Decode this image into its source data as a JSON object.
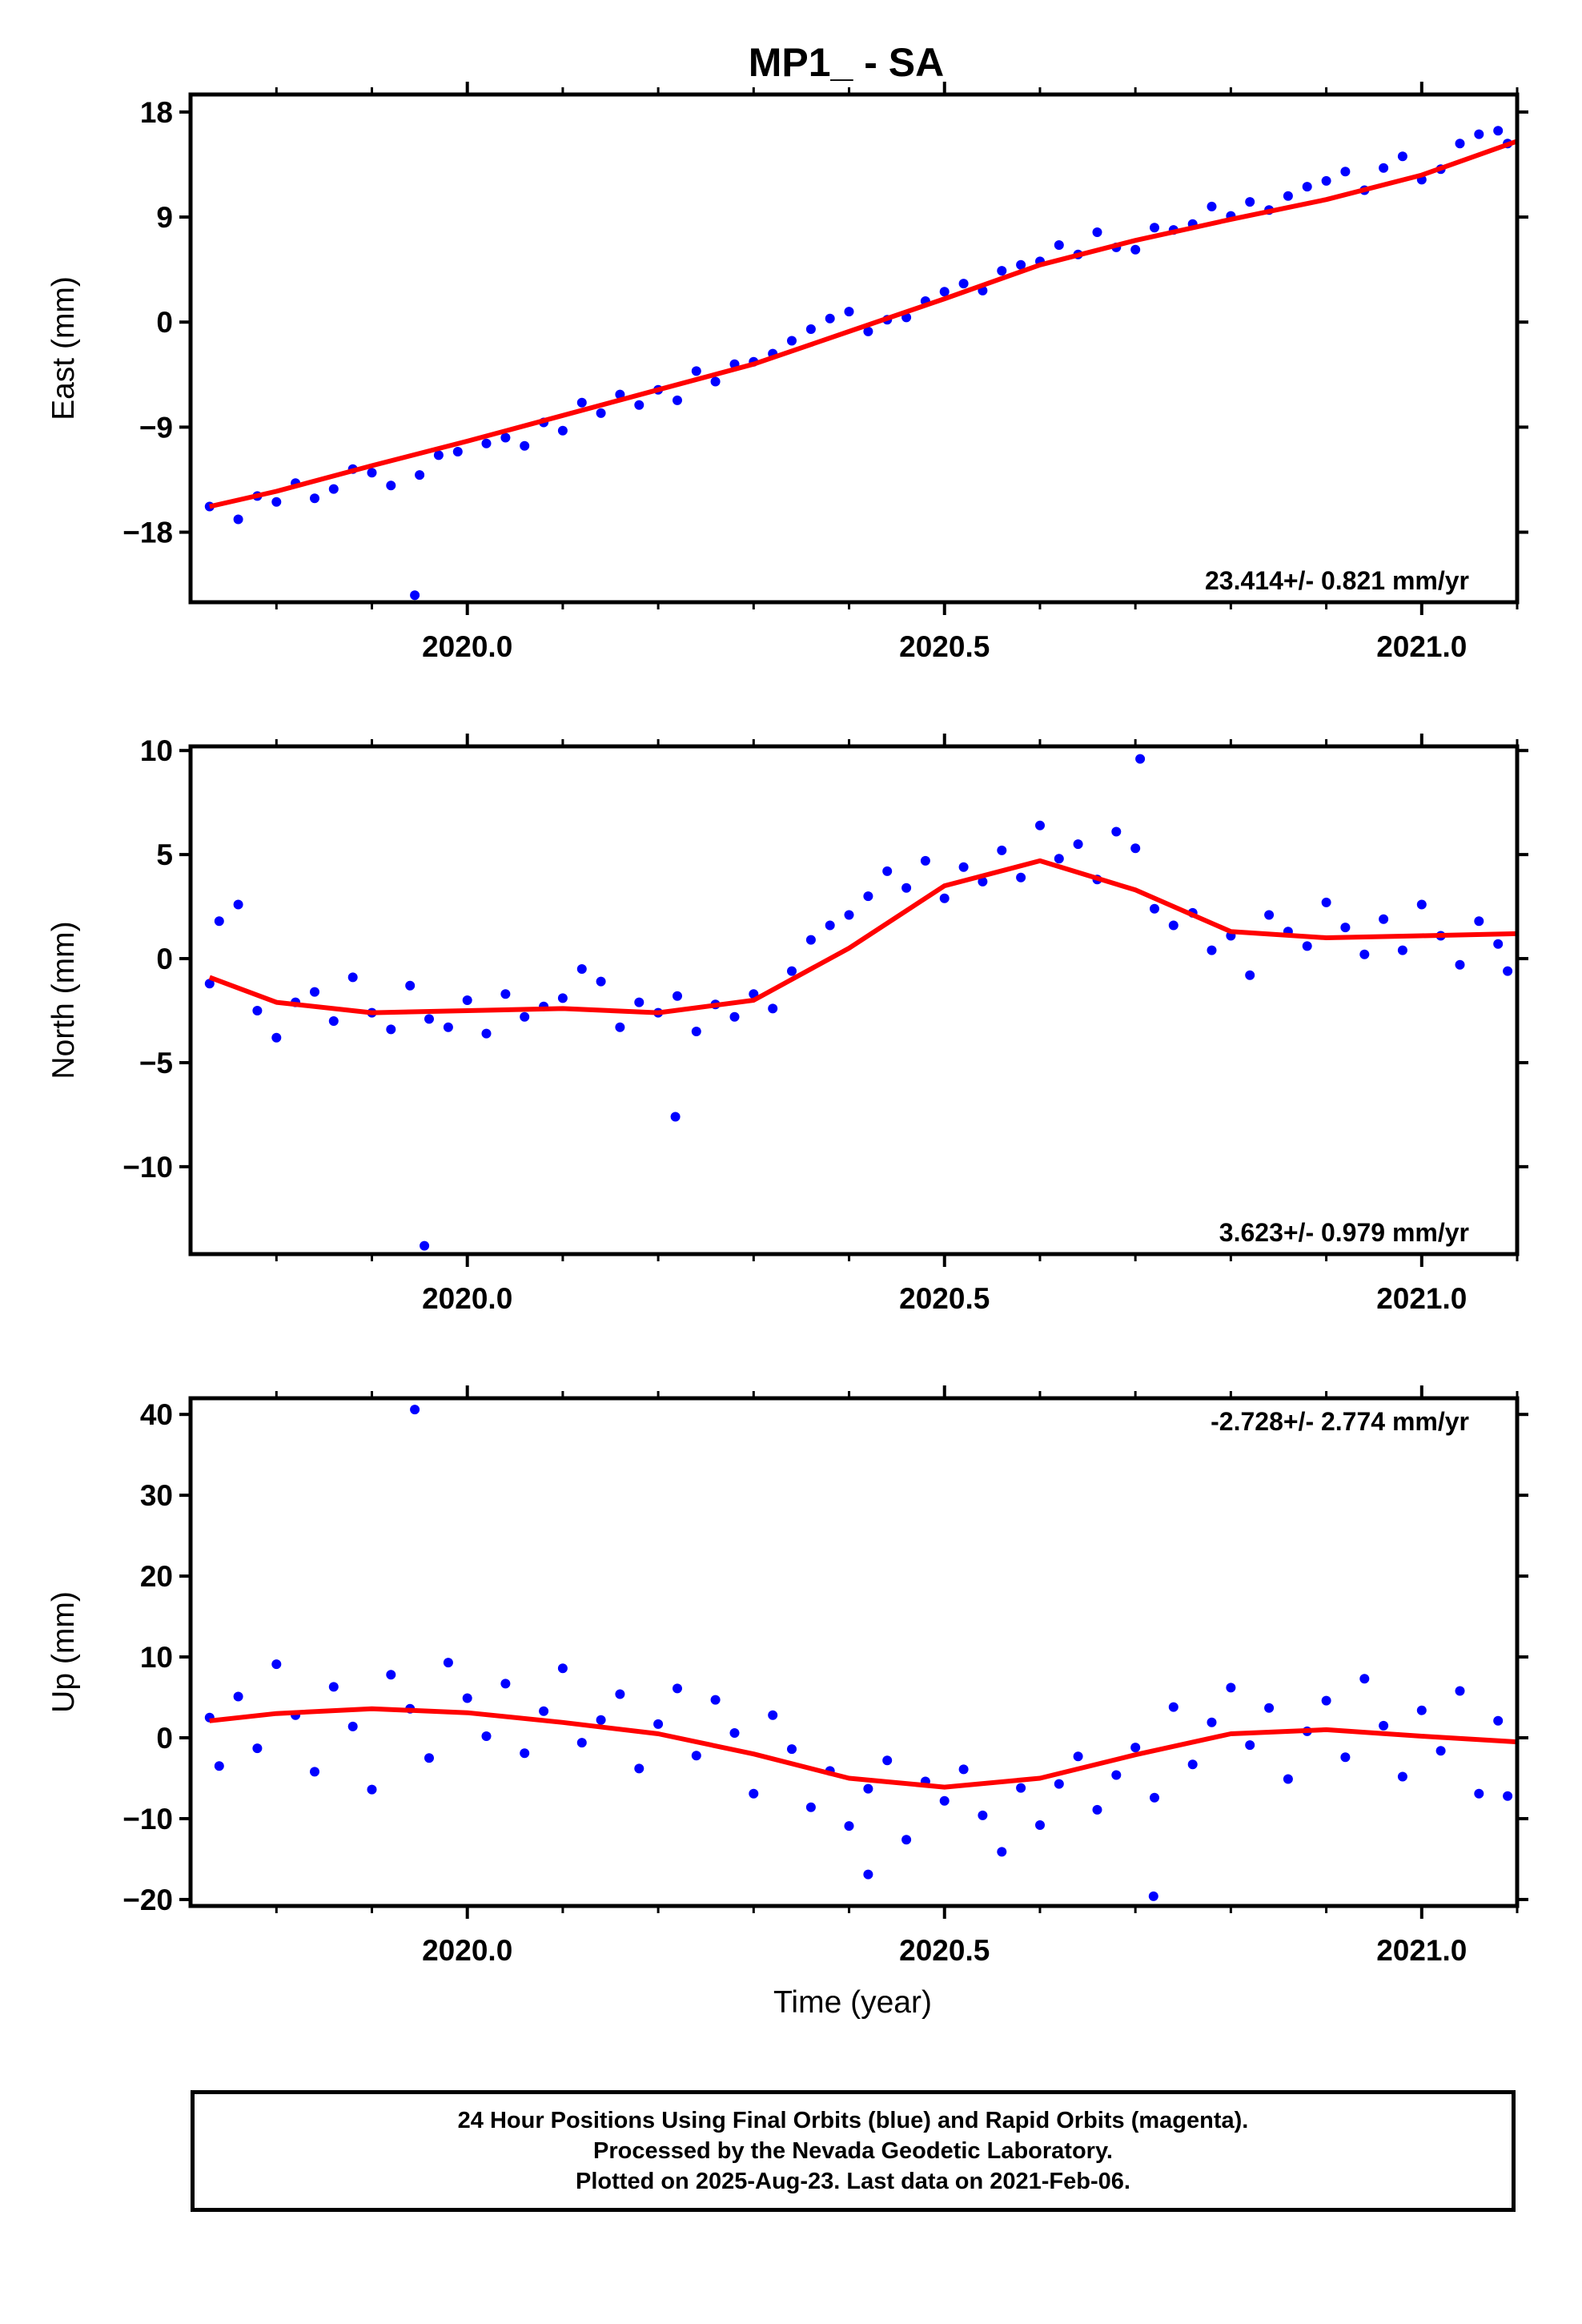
{
  "title": "MP1_ - SA",
  "xlabel": "Time (year)",
  "footer": {
    "line1": "24 Hour Positions Using Final Orbits (blue) and Rapid Orbits (magenta).",
    "line2": "Processed by the Nevada Geodetic Laboratory.",
    "line3": "Plotted on 2025-Aug-23. Last data on 2021-Feb-06."
  },
  "colors": {
    "points": "#0000ff",
    "fit": "#ff0000",
    "axes": "#000000"
  },
  "chart_data": [
    {
      "type": "scatter",
      "ylabel": "East (mm)",
      "rate": "23.414+/- 0.821 mm/yr",
      "rate_position": "bottom-right",
      "xlim": [
        2019.71,
        2021.1
      ],
      "ylim": [
        -24,
        19.5
      ],
      "xticks": [
        2020.0,
        2020.5,
        2021.0
      ],
      "xtick_labels": [
        "2020.0",
        "2020.5",
        "2021.0"
      ],
      "yticks": [
        18,
        9,
        0,
        -9,
        -18
      ],
      "ytick_labels": [
        "18",
        "9",
        "0",
        "−9",
        "−18"
      ],
      "series": [
        {
          "kind": "points",
          "x": [
            2019.73,
            2019.76,
            2019.78,
            2019.8,
            2019.82,
            2019.84,
            2019.86,
            2019.88,
            2019.9,
            2019.92,
            2019.95,
            2019.97,
            2019.99,
            2020.02,
            2020.04,
            2020.06,
            2020.08,
            2020.1,
            2020.12,
            2020.14,
            2020.16,
            2020.18,
            2020.2,
            2020.22,
            2020.24,
            2020.26,
            2020.28,
            2020.3,
            2020.32,
            2020.34,
            2020.36,
            2020.38,
            2020.4,
            2020.42,
            2020.44,
            2020.46,
            2020.48,
            2020.5,
            2020.52,
            2020.54,
            2020.56,
            2020.58,
            2020.6,
            2020.62,
            2020.64,
            2020.66,
            2020.68,
            2020.7,
            2020.72,
            2020.74,
            2020.76,
            2020.78,
            2020.8,
            2020.82,
            2020.84,
            2020.86,
            2020.88,
            2020.9,
            2020.92,
            2020.94,
            2020.96,
            2020.98,
            2021.0,
            2021.02,
            2021.04,
            2021.06,
            2021.08,
            2021.09,
            2019.945
          ],
          "y": [
            -15.8,
            -16.9,
            -14.9,
            -15.4,
            -13.8,
            -15.1,
            -14.3,
            -12.6,
            -12.9,
            -14.0,
            -13.1,
            -11.4,
            -11.1,
            -10.4,
            -9.9,
            -10.6,
            -8.6,
            -9.3,
            -6.9,
            -7.8,
            -6.2,
            -7.1,
            -5.8,
            -6.7,
            -4.2,
            -5.1,
            -3.6,
            -3.4,
            -2.7,
            -1.6,
            -0.6,
            0.3,
            0.9,
            -0.8,
            0.2,
            0.4,
            1.8,
            2.6,
            3.3,
            2.7,
            4.4,
            4.9,
            5.2,
            6.6,
            5.8,
            7.7,
            6.4,
            6.2,
            8.1,
            7.9,
            8.4,
            9.9,
            9.1,
            10.3,
            9.6,
            10.8,
            11.6,
            12.1,
            12.9,
            11.3,
            13.2,
            14.2,
            12.2,
            13.1,
            15.3,
            16.1,
            16.4,
            15.3,
            -23.4
          ]
        },
        {
          "kind": "fit",
          "x": [
            2019.73,
            2019.8,
            2019.9,
            2020.0,
            2020.1,
            2020.2,
            2020.3,
            2020.4,
            2020.5,
            2020.6,
            2020.7,
            2020.8,
            2020.9,
            2021.0,
            2021.1
          ],
          "y": [
            -15.8,
            -14.5,
            -12.3,
            -10.2,
            -8.0,
            -5.8,
            -3.6,
            -0.8,
            2.0,
            4.9,
            7.0,
            8.8,
            10.5,
            12.6,
            15.5
          ]
        }
      ]
    },
    {
      "type": "scatter",
      "ylabel": "North (mm)",
      "rate": "3.623+/- 0.979 mm/yr",
      "rate_position": "bottom-right",
      "xlim": [
        2019.71,
        2021.1
      ],
      "ylim": [
        -14.2,
        10.2
      ],
      "xticks": [
        2020.0,
        2020.5,
        2021.0
      ],
      "xtick_labels": [
        "2020.0",
        "2020.5",
        "2021.0"
      ],
      "yticks": [
        10,
        5,
        0,
        -5,
        -10
      ],
      "ytick_labels": [
        "10",
        "5",
        "0",
        "−5",
        "−10"
      ],
      "series": [
        {
          "kind": "points",
          "x": [
            2019.73,
            2019.74,
            2019.76,
            2019.78,
            2019.8,
            2019.82,
            2019.84,
            2019.86,
            2019.88,
            2019.9,
            2019.92,
            2019.94,
            2019.96,
            2019.98,
            2020.0,
            2020.02,
            2020.04,
            2020.06,
            2020.08,
            2020.1,
            2020.12,
            2020.14,
            2020.16,
            2020.18,
            2020.2,
            2020.22,
            2020.24,
            2020.26,
            2020.28,
            2020.3,
            2020.32,
            2020.34,
            2020.36,
            2020.38,
            2020.4,
            2020.42,
            2020.44,
            2020.46,
            2020.48,
            2020.5,
            2020.52,
            2020.54,
            2020.56,
            2020.58,
            2020.6,
            2020.62,
            2020.64,
            2020.66,
            2020.68,
            2020.7,
            2020.72,
            2020.74,
            2020.76,
            2020.78,
            2020.8,
            2020.82,
            2020.84,
            2020.86,
            2020.88,
            2020.9,
            2020.92,
            2020.94,
            2020.96,
            2020.98,
            2021.0,
            2021.02,
            2021.04,
            2021.06,
            2021.08,
            2021.09,
            2019.955,
            2020.218,
            2020.705
          ],
          "y": [
            -1.2,
            1.8,
            2.6,
            -2.5,
            -3.8,
            -2.1,
            -1.6,
            -3.0,
            -0.9,
            -2.6,
            -3.4,
            -1.3,
            -2.9,
            -3.3,
            -2.0,
            -3.6,
            -1.7,
            -2.8,
            -2.3,
            -1.9,
            -0.5,
            -1.1,
            -3.3,
            -2.1,
            -2.6,
            -1.8,
            -3.5,
            -2.2,
            -2.8,
            -1.7,
            -2.4,
            -0.6,
            0.9,
            1.6,
            2.1,
            3.0,
            4.2,
            3.4,
            4.7,
            2.9,
            4.4,
            3.7,
            5.2,
            3.9,
            6.4,
            4.8,
            5.5,
            3.8,
            6.1,
            5.3,
            2.4,
            1.6,
            2.2,
            0.4,
            1.1,
            -0.8,
            2.1,
            1.3,
            0.6,
            2.7,
            1.5,
            0.2,
            1.9,
            0.4,
            2.6,
            1.1,
            -0.3,
            1.8,
            0.7,
            -0.6,
            -13.8,
            -7.6,
            9.6
          ]
        },
        {
          "kind": "fit",
          "x": [
            2019.73,
            2019.8,
            2019.9,
            2020.0,
            2020.1,
            2020.2,
            2020.3,
            2020.4,
            2020.5,
            2020.6,
            2020.7,
            2020.8,
            2020.9,
            2021.0,
            2021.1
          ],
          "y": [
            -0.9,
            -2.1,
            -2.6,
            -2.5,
            -2.4,
            -2.6,
            -2.0,
            0.5,
            3.5,
            4.7,
            3.3,
            1.3,
            1.0,
            1.1,
            1.2
          ]
        }
      ]
    },
    {
      "type": "scatter",
      "ylabel": "Up (mm)",
      "rate": "-2.728+/- 2.774 mm/yr",
      "rate_position": "top-right",
      "xlim": [
        2019.71,
        2021.1
      ],
      "ylim": [
        -20.8,
        42
      ],
      "xticks": [
        2020.0,
        2020.5,
        2021.0
      ],
      "xtick_labels": [
        "2020.0",
        "2020.5",
        "2021.0"
      ],
      "yticks": [
        40,
        30,
        20,
        10,
        0,
        -10,
        -20
      ],
      "ytick_labels": [
        "40",
        "30",
        "20",
        "10",
        "0",
        "−10",
        "−20"
      ],
      "series": [
        {
          "kind": "points",
          "x": [
            2019.73,
            2019.74,
            2019.76,
            2019.78,
            2019.8,
            2019.82,
            2019.84,
            2019.86,
            2019.88,
            2019.9,
            2019.92,
            2019.94,
            2019.96,
            2019.98,
            2020.0,
            2020.02,
            2020.04,
            2020.06,
            2020.08,
            2020.1,
            2020.12,
            2020.14,
            2020.16,
            2020.18,
            2020.2,
            2020.22,
            2020.24,
            2020.26,
            2020.28,
            2020.3,
            2020.32,
            2020.34,
            2020.36,
            2020.38,
            2020.4,
            2020.42,
            2020.44,
            2020.46,
            2020.48,
            2020.5,
            2020.52,
            2020.54,
            2020.56,
            2020.58,
            2020.6,
            2020.62,
            2020.64,
            2020.66,
            2020.68,
            2020.7,
            2020.72,
            2020.74,
            2020.76,
            2020.78,
            2020.8,
            2020.82,
            2020.84,
            2020.86,
            2020.88,
            2020.9,
            2020.92,
            2020.94,
            2020.96,
            2020.98,
            2021.0,
            2021.02,
            2021.04,
            2021.06,
            2021.08,
            2021.09,
            2019.945,
            2020.42,
            2020.719
          ],
          "y": [
            2.5,
            -3.5,
            5.1,
            -1.3,
            9.1,
            2.8,
            -4.2,
            6.3,
            1.4,
            -6.4,
            7.8,
            3.6,
            -2.5,
            9.3,
            4.9,
            0.2,
            6.7,
            -1.9,
            3.3,
            8.6,
            -0.6,
            2.2,
            5.4,
            -3.8,
            1.7,
            6.1,
            -2.2,
            4.7,
            0.6,
            -6.9,
            2.8,
            -1.4,
            -8.6,
            -4.1,
            -10.9,
            -6.3,
            -2.8,
            -12.6,
            -5.4,
            -7.8,
            -3.9,
            -9.6,
            -14.1,
            -6.2,
            -10.8,
            -5.7,
            -2.3,
            -8.9,
            -4.6,
            -1.2,
            -7.4,
            3.8,
            -3.3,
            1.9,
            6.2,
            -0.9,
            3.7,
            -5.1,
            0.8,
            4.6,
            -2.4,
            7.3,
            1.5,
            -4.8,
            3.4,
            -1.6,
            5.8,
            -6.9,
            2.1,
            -7.2,
            40.6,
            -16.9,
            -19.6
          ]
        },
        {
          "kind": "fit",
          "x": [
            2019.73,
            2019.8,
            2019.9,
            2020.0,
            2020.1,
            2020.2,
            2020.3,
            2020.4,
            2020.5,
            2020.6,
            2020.7,
            2020.8,
            2020.9,
            2021.0,
            2021.1
          ],
          "y": [
            2.1,
            3.0,
            3.6,
            3.1,
            1.9,
            0.5,
            -2.0,
            -5.0,
            -6.1,
            -5.0,
            -2.1,
            0.5,
            1.0,
            0.2,
            -0.5
          ]
        }
      ]
    }
  ]
}
